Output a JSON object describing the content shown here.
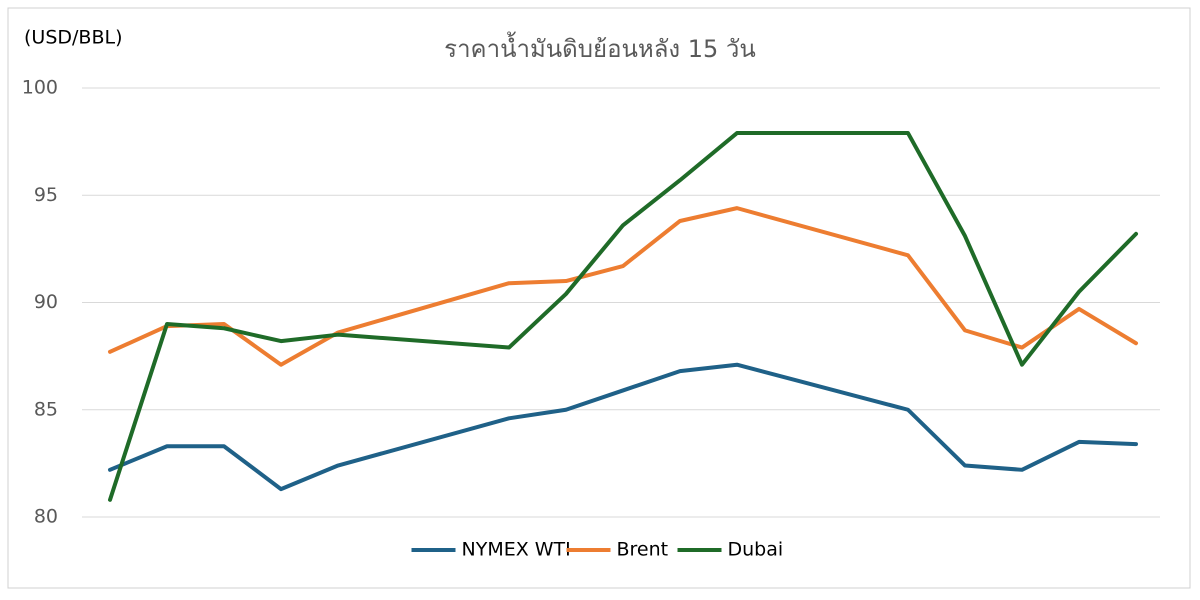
{
  "chart_data": {
    "type": "line",
    "title": "ราคาน้ำมันดิบย้อนหลัง 15 วัน",
    "y_axis_label": "(USD/BBL)",
    "categories": [
      null,
      null,
      null,
      null,
      null,
      null,
      null,
      null,
      null,
      null,
      null,
      null,
      null,
      null,
      null,
      null,
      null,
      null,
      null
    ],
    "span_gaps": true,
    "series": [
      {
        "name": "NYMEX WTI",
        "color": "#1f6188",
        "values": [
          82.2,
          83.3,
          83.3,
          81.3,
          82.4,
          null,
          null,
          84.6,
          85.0,
          85.9,
          86.8,
          87.1,
          null,
          null,
          85.0,
          82.4,
          82.2,
          83.5,
          83.4
        ]
      },
      {
        "name": "Brent",
        "color": "#ed7d31",
        "values": [
          87.7,
          88.9,
          89.0,
          87.1,
          88.6,
          null,
          null,
          90.9,
          91.0,
          91.7,
          93.8,
          94.4,
          null,
          null,
          92.2,
          88.7,
          87.9,
          89.7,
          88.1
        ]
      },
      {
        "name": "Dubai",
        "color": "#1f6b28",
        "values": [
          80.8,
          89.0,
          88.8,
          88.2,
          88.5,
          null,
          null,
          87.9,
          90.4,
          93.6,
          95.7,
          97.9,
          null,
          null,
          97.9,
          93.1,
          87.1,
          90.5,
          93.2
        ]
      }
    ],
    "ylim": [
      80,
      100
    ],
    "yticks": [
      80,
      85,
      90,
      95,
      100
    ],
    "grid": true,
    "legend": "bottom"
  }
}
